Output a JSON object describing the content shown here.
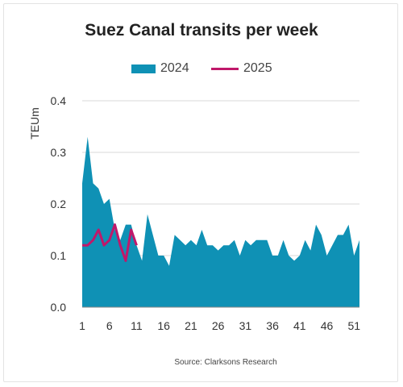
{
  "chart_data": {
    "type": "area",
    "title": "Suez Canal transits per week",
    "ylabel": "TEUm",
    "xlabel": "",
    "ylim": [
      0,
      0.4
    ],
    "xlim": [
      1,
      52
    ],
    "x_ticks": [
      1,
      6,
      11,
      16,
      21,
      26,
      31,
      36,
      41,
      46,
      51
    ],
    "y_ticks": [
      "0.0",
      "0.1",
      "0.2",
      "0.3",
      "0.4"
    ],
    "grid": true,
    "legend_position": "top",
    "series": [
      {
        "name": "2024",
        "type": "area",
        "color": "#0f91b5",
        "x": [
          1,
          2,
          3,
          4,
          5,
          6,
          7,
          8,
          9,
          10,
          11,
          12,
          13,
          14,
          15,
          16,
          17,
          18,
          19,
          20,
          21,
          22,
          23,
          24,
          25,
          26,
          27,
          28,
          29,
          30,
          31,
          32,
          33,
          34,
          35,
          36,
          37,
          38,
          39,
          40,
          41,
          42,
          43,
          44,
          45,
          46,
          47,
          48,
          49,
          50,
          51,
          52
        ],
        "values": [
          0.24,
          0.33,
          0.24,
          0.23,
          0.2,
          0.21,
          0.15,
          0.13,
          0.16,
          0.16,
          0.12,
          0.09,
          0.18,
          0.14,
          0.1,
          0.1,
          0.08,
          0.14,
          0.13,
          0.12,
          0.13,
          0.12,
          0.15,
          0.12,
          0.12,
          0.11,
          0.12,
          0.12,
          0.13,
          0.1,
          0.13,
          0.12,
          0.13,
          0.13,
          0.13,
          0.1,
          0.1,
          0.13,
          0.1,
          0.09,
          0.1,
          0.13,
          0.11,
          0.16,
          0.14,
          0.1,
          0.12,
          0.14,
          0.14,
          0.16,
          0.1,
          0.13
        ]
      },
      {
        "name": "2025",
        "type": "line",
        "color": "#c0186a",
        "x": [
          1,
          2,
          3,
          4,
          5,
          6,
          7,
          8,
          9,
          10,
          11
        ],
        "values": [
          0.12,
          0.12,
          0.13,
          0.15,
          0.12,
          0.13,
          0.16,
          0.12,
          0.09,
          0.15,
          0.12
        ]
      }
    ]
  },
  "source": "Source: Clarksons Research"
}
